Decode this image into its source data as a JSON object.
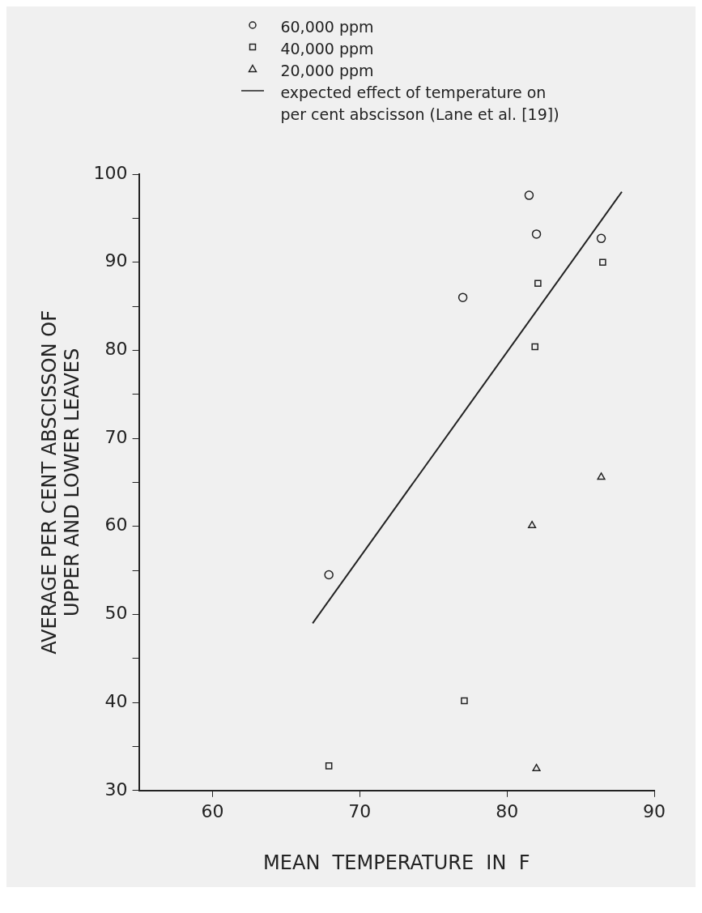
{
  "chart_data": {
    "type": "scatter",
    "xlabel": "MEAN  TEMPERATURE  IN  F",
    "ylabel": "AVERAGE PER CENT ABSCISSON OF\nUPPER AND LOWER LEAVES",
    "xlim": [
      55,
      90
    ],
    "xticks": [
      60,
      70,
      80,
      90
    ],
    "ylim": [
      30,
      100
    ],
    "yticks": [
      30,
      {
        "value": 35,
        "label": null
      },
      40,
      {
        "value": 45,
        "label": null
      },
      50,
      {
        "value": 55,
        "label": null
      },
      60,
      {
        "value": 65,
        "label": null
      },
      70,
      {
        "value": 75,
        "label": null
      },
      80,
      {
        "value": 85,
        "label": null
      },
      90,
      {
        "value": 95,
        "label": null
      },
      100
    ],
    "grid": false,
    "legend": "top",
    "series": [
      {
        "name": "60,000 ppm",
        "color": "#222222",
        "marker": "circle",
        "x": [
          81.5,
          82.0,
          86.4,
          77.0,
          67.9
        ],
        "values": [
          97.6,
          93.2,
          92.7,
          86.0,
          54.5
        ]
      },
      {
        "name": "40,000 ppm",
        "color": "#222222",
        "marker": "square",
        "x": [
          82.1,
          86.5,
          81.9,
          77.1,
          67.9
        ],
        "values": [
          87.6,
          90.0,
          80.4,
          40.2,
          32.8
        ]
      },
      {
        "name": "20,000 ppm",
        "color": "#222222",
        "marker": "triangle",
        "x": [
          86.4,
          81.7,
          82.0
        ],
        "values": [
          65.6,
          60.1,
          32.5
        ]
      },
      {
        "name": "expected effect of temperature on\nper cent abscisson (Lane et al. [19])",
        "type": "line",
        "color": "#222222",
        "marker": "none",
        "x": [
          66.8,
          87.8
        ],
        "values": [
          49,
          98
        ]
      }
    ]
  }
}
